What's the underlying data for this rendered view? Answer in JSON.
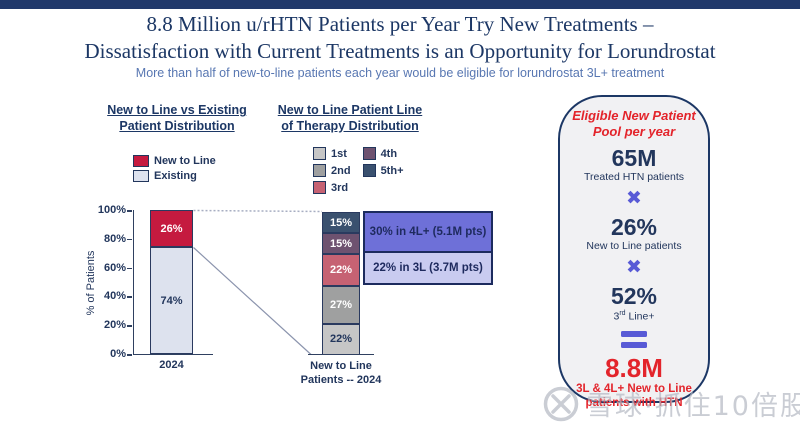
{
  "page": {
    "background": "#ffffff",
    "top_bar_color": "#21396b"
  },
  "header": {
    "title_line1": "8.8 Million u/rHTN Patients per Year Try New Treatments –",
    "title_line2": "Dissatisfaction with Current Treatments is an Opportunity for Lorundrostat",
    "subtitle": "More than half of new-to-line patients each year would be eligible for lorundrostat 3L+ treatment"
  },
  "chart_data": [
    {
      "type": "bar",
      "stacked": true,
      "title": "New to Line vs Existing Patient Distribution",
      "title_lines": [
        "New to Line vs Existing",
        "Patient Distribution"
      ],
      "ylabel": "% of Patients",
      "ylim": [
        0,
        100
      ],
      "yticks": [
        "100%",
        "80%",
        "60%",
        "40%",
        "20%",
        "0%"
      ],
      "categories": [
        "2024"
      ],
      "legend_position": "top-left",
      "series": [
        {
          "name": "New to Line",
          "values": [
            26
          ],
          "label": "26%",
          "color": "#c51a3f",
          "label_color": "#ffffff"
        },
        {
          "name": "Existing",
          "values": [
            74
          ],
          "label": "74%",
          "color": "#dde2ee",
          "label_color": "#22365c"
        }
      ]
    },
    {
      "type": "bar",
      "stacked": true,
      "title": "New to Line Patient Line of Therapy Distribution",
      "title_lines": [
        "New to Line Patient Line",
        "of Therapy Distribution"
      ],
      "categories": [
        "New to Line Patients -- 2024"
      ],
      "xlabel_lines": [
        "New to Line",
        "Patients -- 2024"
      ],
      "ylim": [
        0,
        100
      ],
      "legend": [
        {
          "name": "1st",
          "color": "#c6c6c6"
        },
        {
          "name": "2nd",
          "color": "#9fa0a0"
        },
        {
          "name": "3rd",
          "color": "#c66273"
        },
        {
          "name": "4th",
          "color": "#6e5270"
        },
        {
          "name": "5th+",
          "color": "#3a516f"
        }
      ],
      "segments_top_to_bottom": [
        {
          "name": "5th+",
          "value": 15,
          "label": "15%",
          "color": "#3a516f",
          "label_color": "#ffffff"
        },
        {
          "name": "4th",
          "value": 15,
          "label": "15%",
          "color": "#6e5270",
          "label_color": "#ffffff"
        },
        {
          "name": "3rd",
          "value": 22,
          "label": "22%",
          "color": "#c66273",
          "label_color": "#ffffff"
        },
        {
          "name": "2nd",
          "value": 27,
          "label": "27%",
          "color": "#9fa0a0",
          "label_color": "#ffffff"
        },
        {
          "name": "1st",
          "value": 22,
          "label": "22%",
          "color": "#c6c6c6",
          "label_color": "#22365c"
        }
      ],
      "callouts": [
        {
          "text": "30% in 4L+ (5.1M pts)",
          "bg": "#6e70d8",
          "text_color": "#1e2a5e",
          "border": "#1c2b5e"
        },
        {
          "text": "22% in 3L (3.7M pts)",
          "bg": "#c9cbf0",
          "text_color": "#1e2a5e",
          "border": "#1c2b5e"
        }
      ]
    }
  ],
  "right_panel": {
    "title_line1": "Eligible New Patient",
    "title_line2": "Pool per year",
    "stat1": {
      "value": "65M",
      "caption": "Treated HTN patients"
    },
    "op1": "✖",
    "stat2": {
      "value": "26%",
      "caption": "New to Line patients"
    },
    "op2": "✖",
    "stat3": {
      "value": "52%",
      "caption_base": "3",
      "caption_sup": "rd",
      "caption_rest": " Line+"
    },
    "op3": "=",
    "result": {
      "value": "8.8M",
      "caption_line1": "3L & 4L+ New to Line",
      "caption_line2": "patients with HTN"
    },
    "accent_red": "#e3242b",
    "accent_purple": "#585ad6"
  },
  "watermark": {
    "logo": "snowball-circle-x-logo",
    "text": "雪球·抓住10倍股"
  }
}
